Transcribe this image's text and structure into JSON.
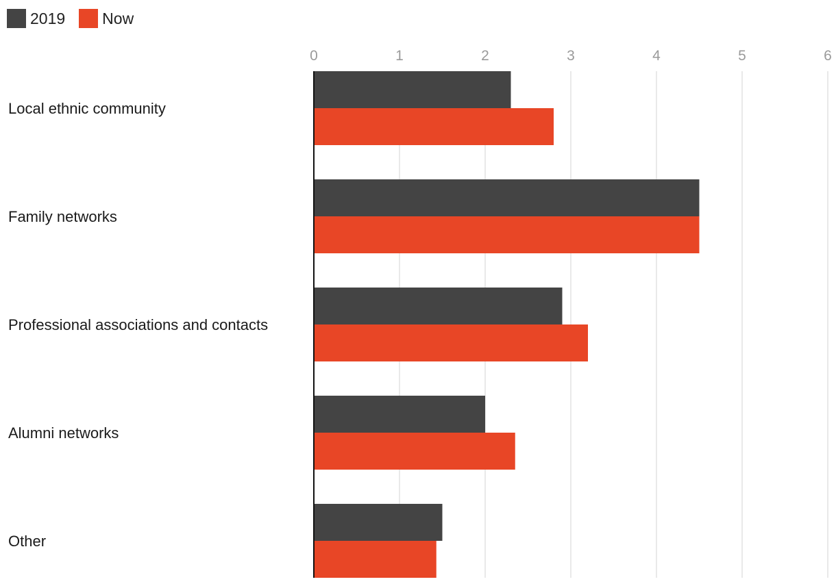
{
  "chart_data": {
    "type": "bar",
    "orientation": "horizontal",
    "categories": [
      "Local ethnic community",
      "Family networks",
      "Professional associations and contacts",
      "Alumni networks",
      "Other"
    ],
    "series": [
      {
        "name": "2019",
        "color": "#444444",
        "values": [
          2.3,
          4.5,
          2.9,
          2.0,
          1.5
        ]
      },
      {
        "name": "Now",
        "color": "#e84626",
        "values": [
          2.8,
          4.5,
          3.2,
          2.35,
          1.43
        ]
      }
    ],
    "xlim": [
      0,
      6
    ],
    "xticks": [
      "0",
      "1",
      "2",
      "3",
      "4",
      "5",
      "6"
    ],
    "grid": true,
    "legend_position": "top-left"
  }
}
